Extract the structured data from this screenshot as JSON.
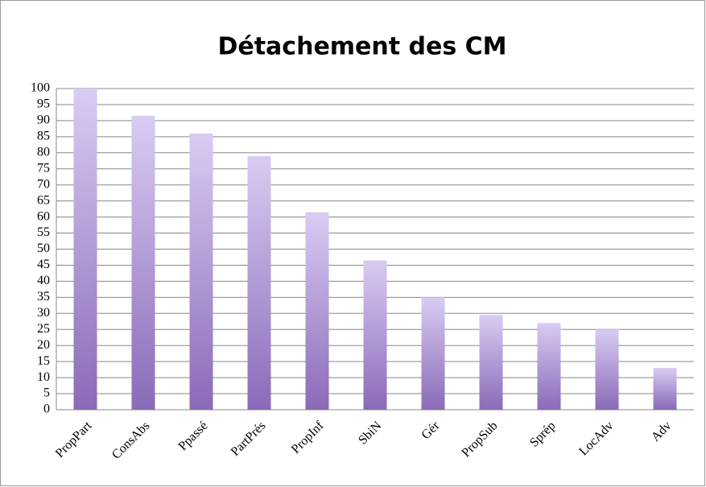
{
  "chart_data": {
    "type": "bar",
    "title": "Détachement des CM",
    "categories": [
      "PropPart",
      "ConsAbs",
      "Ppassé",
      "PartPrés",
      "PropInf",
      "SbiN",
      "Gér",
      "PropSub",
      "Sprép",
      "LocAdv",
      "Adv"
    ],
    "values": [
      100,
      91.5,
      86,
      79,
      61.5,
      46.5,
      35,
      29.5,
      27,
      25,
      13
    ],
    "gradient": [
      "#d9ccf3",
      "#8a6ab8"
    ],
    "ylim": [
      0,
      100
    ],
    "yticks": [
      0,
      5,
      10,
      15,
      20,
      25,
      30,
      35,
      40,
      45,
      50,
      55,
      60,
      65,
      70,
      75,
      80,
      85,
      90,
      95,
      100
    ],
    "grid": true
  }
}
